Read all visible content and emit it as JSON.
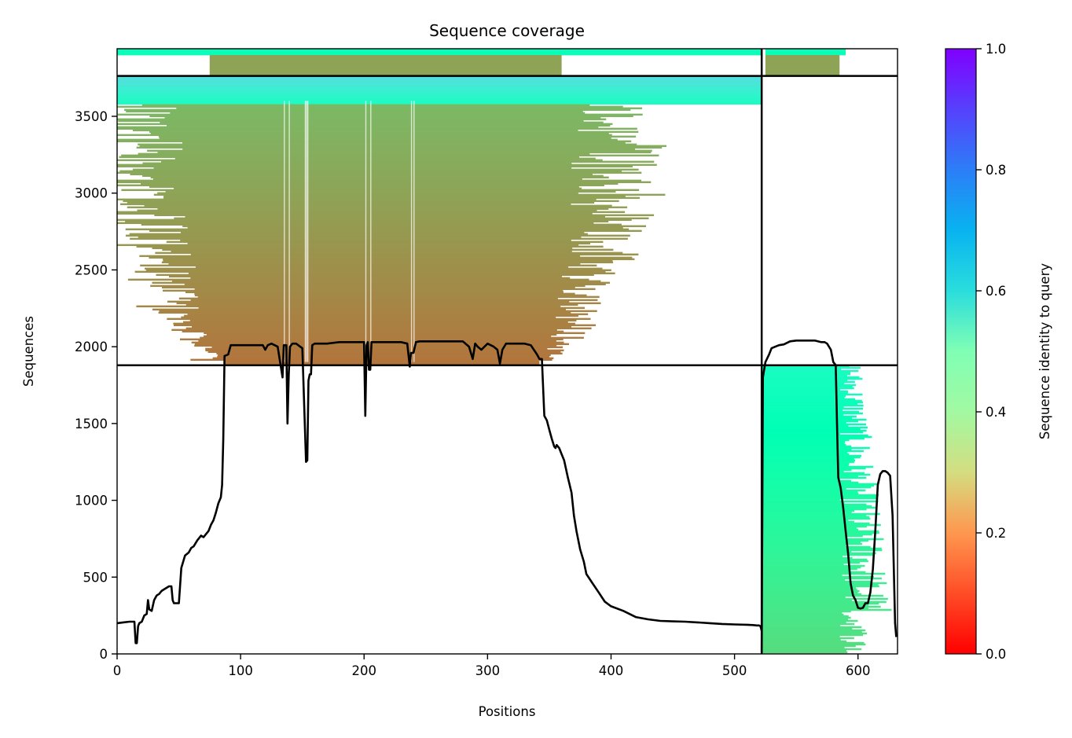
{
  "chart_data": {
    "type": "heatmap",
    "title": "Sequence coverage",
    "xlabel": "Positions",
    "ylabel": "Sequences",
    "xlim": [
      0,
      632
    ],
    "ylim": [
      0,
      3940
    ],
    "xticks": [
      0,
      100,
      200,
      300,
      400,
      500,
      600
    ],
    "yticks": [
      0,
      500,
      1000,
      1500,
      2000,
      2500,
      3000,
      3500
    ],
    "colorbar": {
      "label": "Sequence identity to query",
      "min": 0.0,
      "max": 1.0,
      "ticks": [
        "0.0",
        "0.2",
        "0.4",
        "0.6",
        "0.8",
        "1.0"
      ],
      "colormap": "rainbow_r"
    },
    "dividers": {
      "vertical_x": [
        522
      ],
      "horizontal_y": [
        1879,
        3763
      ]
    },
    "coverage_blocks": [
      {
        "name": "block-1",
        "x": [
          0,
          522
        ],
        "y": [
          1879,
          3763
        ],
        "core_x": [
          87,
          342
        ],
        "identity_bottom": 0.15,
        "identity_top": 0.27,
        "extensions": [
          [
            0,
            30
          ],
          [
            90,
            52
          ],
          [
            200,
            70
          ],
          [
            350,
            80
          ],
          [
            600,
            85
          ],
          [
            900,
            75
          ],
          [
            1200,
            60
          ],
          [
            1500,
            45
          ],
          [
            1700,
            30
          ],
          [
            1850,
            8
          ]
        ],
        "extensions_note": "left and right spread of ragged edges, as extra positions, by row index",
        "header_rows": [
          3580,
          3763
        ],
        "header_identity": 0.55
      },
      {
        "name": "block-2",
        "x": [
          0,
          522
        ],
        "y": [
          3763,
          3940
        ],
        "core_x": [
          75,
          360
        ],
        "identity": 0.22,
        "header_identity": 0.52
      },
      {
        "name": "block-3",
        "x": [
          522,
          632
        ],
        "y": [
          0,
          1879
        ],
        "core_x": [
          522,
          585
        ],
        "identity_bottom": 0.33,
        "identity_top": 0.55
      },
      {
        "name": "block-4",
        "x": [
          522,
          632
        ],
        "y": [
          3763,
          3940
        ],
        "core_x": [
          525,
          585
        ],
        "identity": 0.22,
        "header_identity": 0.52
      }
    ],
    "coverage_line": {
      "color": "#000000",
      "x": [
        0,
        5,
        10,
        14,
        15,
        16,
        17,
        18,
        20,
        22,
        24,
        25,
        26,
        28,
        30,
        32,
        34,
        36,
        38,
        40,
        42,
        44,
        45,
        46,
        48,
        50,
        52,
        55,
        58,
        60,
        62,
        65,
        68,
        70,
        72,
        74,
        76,
        78,
        80,
        82,
        84,
        85,
        86,
        87,
        90,
        92,
        95,
        100,
        110,
        118,
        120,
        122,
        125,
        130,
        134,
        135,
        136,
        137,
        138,
        139,
        140,
        142,
        145,
        150,
        152,
        153,
        154,
        155,
        156,
        157,
        158,
        160,
        165,
        170,
        180,
        190,
        195,
        200,
        201,
        202,
        203,
        204,
        205,
        206,
        210,
        220,
        230,
        235,
        237,
        238,
        240,
        242,
        245,
        250,
        260,
        270,
        280,
        285,
        288,
        290,
        292,
        295,
        300,
        305,
        308,
        310,
        312,
        315,
        320,
        330,
        335,
        340,
        342,
        344,
        346,
        348,
        350,
        352,
        354,
        355,
        356,
        358,
        360,
        362,
        365,
        368,
        370,
        372,
        375,
        378,
        380,
        385,
        390,
        395,
        400,
        410,
        420,
        430,
        440,
        450,
        460,
        470,
        480,
        490,
        500,
        510,
        515,
        518,
        520,
        521,
        522
      ],
      "y": [
        200,
        205,
        210,
        210,
        70,
        70,
        180,
        200,
        210,
        250,
        260,
        350,
        290,
        280,
        350,
        380,
        390,
        410,
        420,
        430,
        440,
        440,
        350,
        330,
        330,
        330,
        560,
        640,
        660,
        690,
        700,
        740,
        770,
        760,
        780,
        800,
        840,
        870,
        920,
        980,
        1020,
        1100,
        1400,
        1940,
        1950,
        2010,
        2010,
        2010,
        2010,
        2010,
        1980,
        2010,
        2020,
        2000,
        1800,
        2010,
        2010,
        2010,
        1500,
        1820,
        2000,
        2020,
        2020,
        1990,
        1500,
        1250,
        1260,
        1780,
        1820,
        1820,
        2010,
        2020,
        2020,
        2020,
        2030,
        2030,
        2030,
        2030,
        1550,
        2010,
        2030,
        1850,
        1850,
        2030,
        2030,
        2030,
        2030,
        2020,
        1870,
        1960,
        1960,
        2030,
        2035,
        2035,
        2035,
        2035,
        2035,
        2000,
        1920,
        2020,
        2000,
        1980,
        2020,
        2000,
        1980,
        1890,
        1980,
        2020,
        2020,
        2020,
        2010,
        1950,
        1920,
        1920,
        1550,
        1520,
        1460,
        1400,
        1350,
        1340,
        1360,
        1340,
        1300,
        1260,
        1150,
        1050,
        900,
        800,
        680,
        600,
        520,
        460,
        400,
        340,
        310,
        280,
        240,
        225,
        215,
        212,
        210,
        205,
        200,
        195,
        192,
        190,
        188,
        185,
        185,
        180,
        150,
        20,
        10
      ],
      "x2": [
        522,
        523,
        525,
        528,
        530,
        533,
        536,
        540,
        545,
        550,
        555,
        560,
        565,
        570,
        573,
        575,
        578,
        580,
        582,
        583,
        584,
        586,
        588,
        590,
        592,
        594,
        596,
        598,
        600,
        602,
        604,
        606,
        608,
        610,
        612,
        614,
        616,
        618,
        620,
        622,
        624,
        626,
        628,
        630,
        631
      ],
      "y2": [
        10,
        1800,
        1900,
        1950,
        1990,
        2000,
        2010,
        2015,
        2035,
        2040,
        2040,
        2040,
        2040,
        2030,
        2030,
        2020,
        1980,
        1900,
        1880,
        1500,
        1150,
        1080,
        950,
        800,
        650,
        460,
        380,
        350,
        300,
        295,
        300,
        330,
        330,
        400,
        550,
        800,
        1100,
        1170,
        1190,
        1190,
        1180,
        1160,
        900,
        200,
        110
      ]
    }
  }
}
